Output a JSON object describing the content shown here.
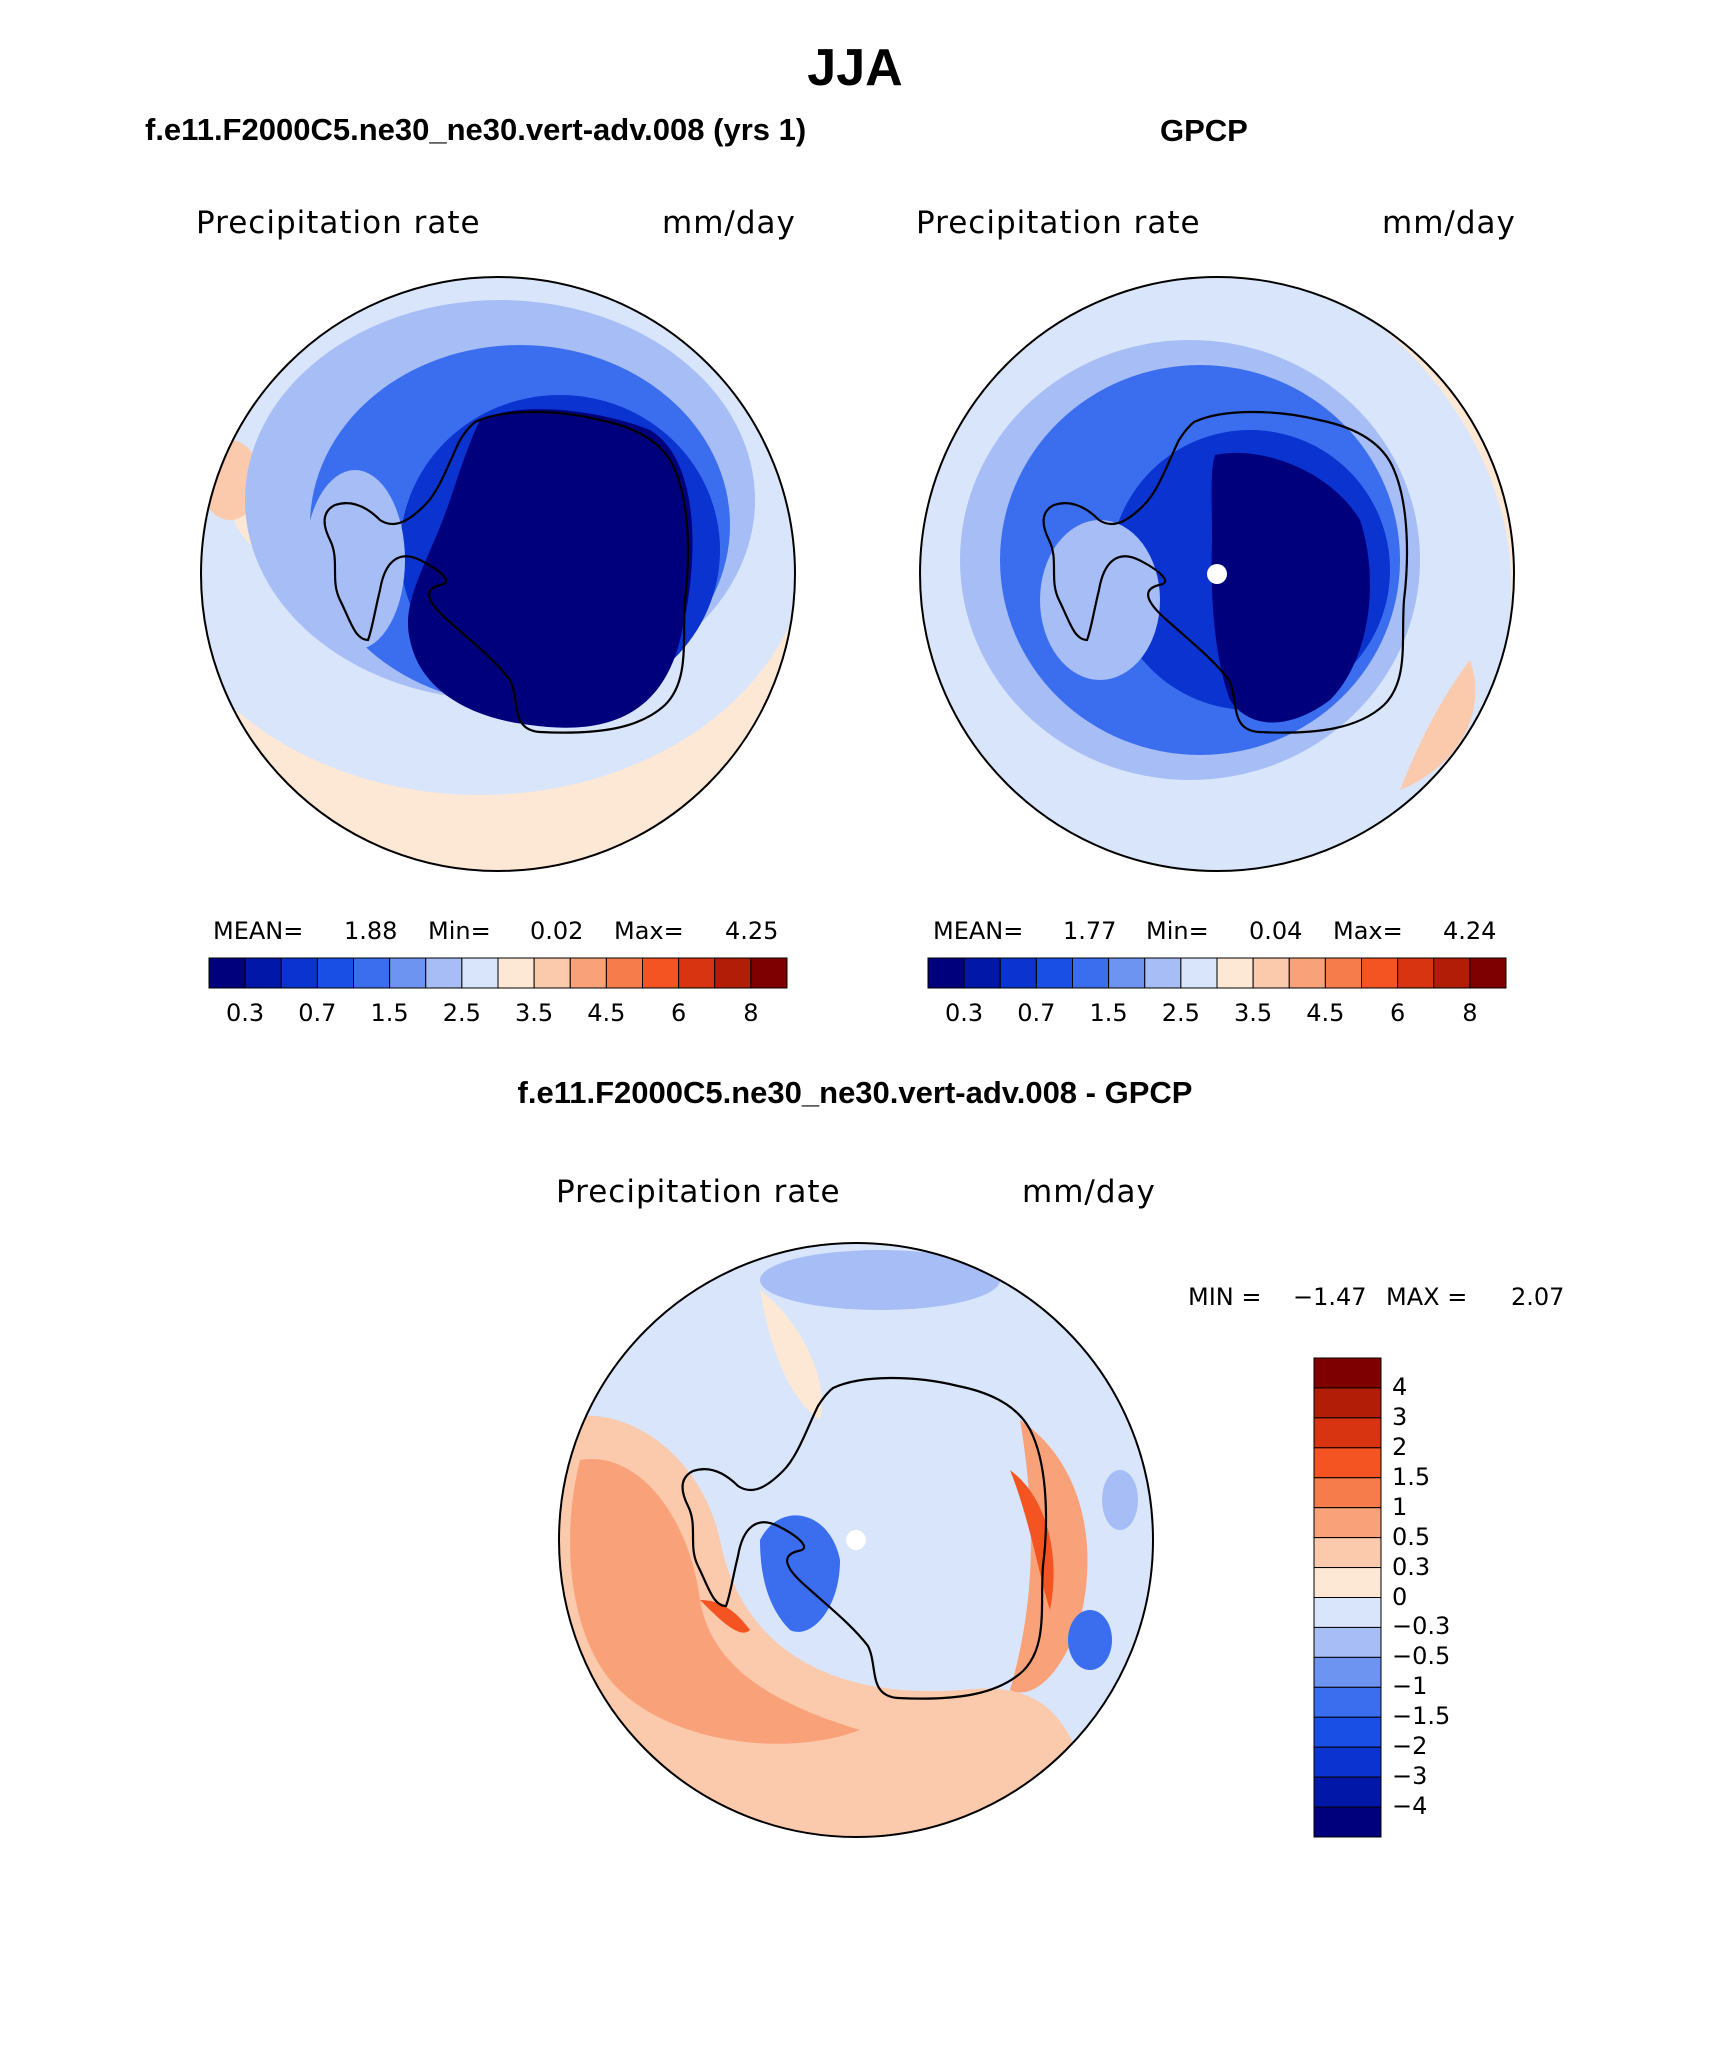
{
  "figure": {
    "title": "JJA",
    "footer": ""
  },
  "panels": {
    "left": {
      "title": "f.e11.F2000C5.ne30_ne30.vert-adv.008 (yrs 1)",
      "variable": "Precipitation rate",
      "units": "mm/day",
      "mean_label": "MEAN=",
      "mean": "1.88",
      "min_label": "Min=",
      "min": "0.02",
      "max_label": "Max=",
      "max": "4.25"
    },
    "right": {
      "title": "GPCP",
      "variable": "Precipitation rate",
      "units": "mm/day",
      "mean_label": "MEAN=",
      "mean": "1.77",
      "min_label": "Min=",
      "min": "0.04",
      "max_label": "Max=",
      "max": "4.24"
    },
    "bottom": {
      "title": "f.e11.F2000C5.ne30_ne30.vert-adv.008 - GPCP",
      "variable": "Precipitation rate",
      "units": "mm/day",
      "min_label": "MIN =",
      "min": "−1.47",
      "max_label": "MAX =",
      "max": "2.07"
    }
  },
  "colorbars": {
    "horizontal": {
      "colors": [
        "#00007d",
        "#0017a8",
        "#0a33cf",
        "#1a4fe6",
        "#3b6eef",
        "#6e94f2",
        "#a6bdf5",
        "#d9e5fb",
        "#fde8d6",
        "#fbc9ab",
        "#f9a27a",
        "#f77c4b",
        "#f45421",
        "#d83411",
        "#b21d08",
        "#7f0000"
      ],
      "tick_labels": [
        "0.3",
        "0.7",
        "1.5",
        "2.5",
        "3.5",
        "4.5",
        "6",
        "8"
      ]
    },
    "vertical": {
      "colors": [
        "#7f0000",
        "#b21d08",
        "#d83411",
        "#f45421",
        "#f77c4b",
        "#f9a27a",
        "#fbc9ab",
        "#fde8d6",
        "#d9e5fb",
        "#a6bdf5",
        "#6e94f2",
        "#3b6eef",
        "#1a4fe6",
        "#0a33cf",
        "#0017a8",
        "#00007d"
      ],
      "tick_labels": [
        "4",
        "3",
        "2",
        "1.5",
        "1",
        "0.5",
        "0.3",
        "0",
        "−0.3",
        "−0.5",
        "−1",
        "−1.5",
        "−2",
        "−3",
        "−4"
      ]
    },
    "level_colors": {
      "very_dark_blue": "#00007d",
      "dark_blue": "#0a33cf",
      "mid_blue": "#3b6eef",
      "light_blue": "#a6bdf5",
      "pale_blue": "#d9e5fb",
      "pale_orange": "#fde8d6",
      "light_orange": "#fbc9ab",
      "orange": "#f9a27a",
      "red_orange": "#f45421"
    }
  }
}
